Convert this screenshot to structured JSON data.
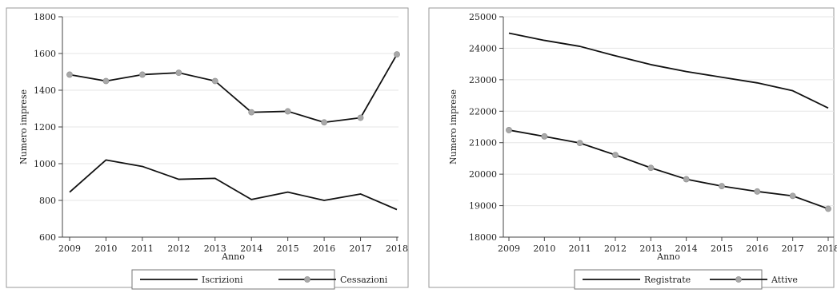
{
  "chart_data": [
    {
      "type": "line",
      "title": "",
      "xlabel": "Anno",
      "ylabel": "Numero imprese",
      "x": [
        2009,
        2010,
        2011,
        2012,
        2013,
        2014,
        2015,
        2016,
        2017,
        2018
      ],
      "x_ticks": [
        "2009",
        "2010",
        "2011",
        "2012",
        "2013",
        "2014",
        "2015",
        "2016",
        "2017",
        "2018"
      ],
      "ylim": [
        600,
        1800
      ],
      "y_ticks": [
        600,
        800,
        1000,
        1200,
        1400,
        1600,
        1800
      ],
      "grid": true,
      "legend_position": "bottom",
      "series": [
        {
          "name": "Iscrizioni",
          "marker": false,
          "color": "#111111",
          "values": [
            845,
            1020,
            985,
            915,
            920,
            805,
            845,
            800,
            835,
            750
          ]
        },
        {
          "name": "Cessazioni",
          "marker": true,
          "color": "#111111",
          "marker_color": "#a8a8a8",
          "values": [
            1485,
            1450,
            1485,
            1495,
            1450,
            1280,
            1285,
            1225,
            1250,
            1595
          ]
        }
      ]
    },
    {
      "type": "line",
      "title": "",
      "xlabel": "Anno",
      "ylabel": "Numero imprese",
      "x": [
        2009,
        2010,
        2011,
        2012,
        2013,
        2014,
        2015,
        2016,
        2017,
        2018
      ],
      "x_ticks": [
        "2009",
        "2010",
        "2011",
        "2012",
        "2013",
        "2014",
        "2015",
        "2016",
        "2017",
        "2018"
      ],
      "ylim": [
        18000,
        25000
      ],
      "y_ticks": [
        18000,
        19000,
        20000,
        21000,
        22000,
        23000,
        24000,
        25000
      ],
      "grid": true,
      "legend_position": "bottom",
      "series": [
        {
          "name": "Registrate",
          "marker": false,
          "color": "#111111",
          "values": [
            24480,
            24250,
            24060,
            23760,
            23480,
            23260,
            23080,
            22900,
            22650,
            22100
          ]
        },
        {
          "name": "Attive",
          "marker": true,
          "color": "#111111",
          "marker_color": "#a8a8a8",
          "values": [
            21400,
            21200,
            20990,
            20610,
            20200,
            19840,
            19620,
            19450,
            19310,
            18900
          ]
        }
      ]
    }
  ]
}
